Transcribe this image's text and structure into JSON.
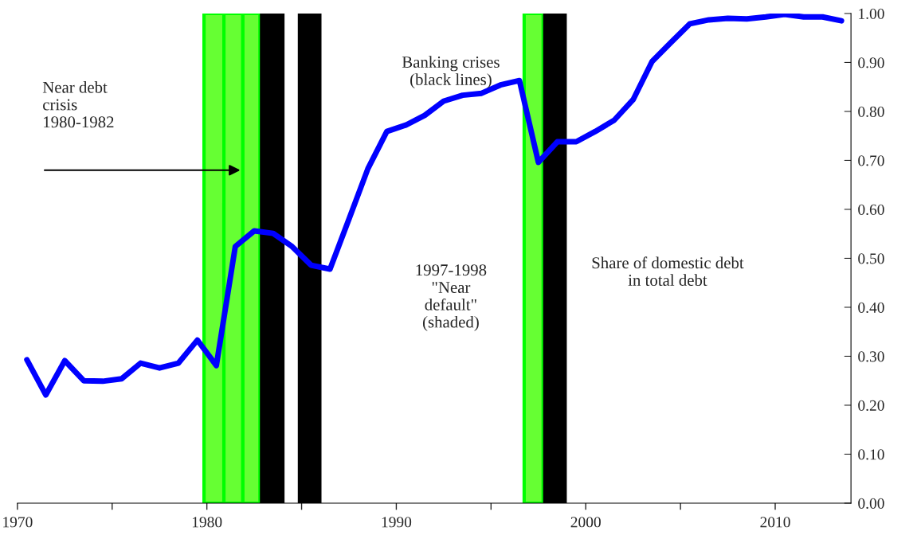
{
  "chart_data": {
    "type": "line",
    "x": [
      1970.5,
      1971.5,
      1972.5,
      1973.5,
      1974.5,
      1975.5,
      1976.5,
      1977.5,
      1978.5,
      1979.5,
      1980.5,
      1981.5,
      1982.5,
      1983.5,
      1984.5,
      1985.5,
      1986.5,
      1987.5,
      1988.5,
      1989.5,
      1990.5,
      1991.5,
      1992.5,
      1993.5,
      1994.5,
      1995.5,
      1996.5,
      1997.5,
      1998.5,
      1999.5,
      2000.5,
      2001.5,
      2002.5,
      2003.5,
      2004.5,
      2005.5,
      2006.5,
      2007.5,
      2008.5,
      2009.5,
      2010.5,
      2011.5,
      2012.5,
      2013.5
    ],
    "series": [
      {
        "color": "#0000ff",
        "values": [
          0.293,
          0.221,
          0.291,
          0.25,
          0.249,
          0.254,
          0.286,
          0.276,
          0.286,
          0.333,
          0.281,
          0.524,
          0.556,
          0.551,
          0.524,
          0.486,
          0.478,
          0.58,
          0.683,
          0.759,
          0.772,
          0.792,
          0.821,
          0.833,
          0.837,
          0.854,
          0.863,
          0.696,
          0.738,
          0.738,
          0.759,
          0.782,
          0.824,
          0.902,
          0.941,
          0.979,
          0.987,
          0.99,
          0.989,
          0.993,
          0.998,
          0.993,
          0.993,
          0.985
        ]
      }
    ],
    "xlim": [
      1970,
      2014
    ],
    "xticks": [
      1970,
      {
        "value": 1975,
        "label": null
      },
      1980,
      {
        "value": 1985,
        "label": null
      },
      1990,
      {
        "value": 1995,
        "label": null
      },
      2000,
      {
        "value": 2005,
        "label": null
      },
      2010
    ],
    "ylim": [
      0,
      1
    ],
    "yticks": [
      {
        "value": 0,
        "label": "0.00"
      },
      {
        "value": 0.1,
        "label": "0.10"
      },
      {
        "value": 0.2,
        "label": "0.20"
      },
      {
        "value": 0.3,
        "label": "0.30"
      },
      {
        "value": 0.4,
        "label": "0.40"
      },
      {
        "value": 0.5,
        "label": "0.50"
      },
      {
        "value": 0.6,
        "label": "0.60"
      },
      {
        "value": 0.7,
        "label": "0.70"
      },
      {
        "value": 0.8,
        "label": "0.80"
      },
      {
        "value": 0.9,
        "label": "0.90"
      },
      {
        "value": 1.0,
        "label": "1.00"
      }
    ],
    "bands": [
      {
        "axis": "x",
        "from": 1979.85,
        "to": 1980.9,
        "color": "#66ff33"
      },
      {
        "axis": "x",
        "from": 1980.9,
        "to": 1981.9,
        "color": "#66ff33"
      },
      {
        "axis": "x",
        "from": 1981.9,
        "to": 1982.8,
        "color": "#66ff33"
      },
      {
        "axis": "x",
        "from": 1982.8,
        "to": 1984.1,
        "color": "#000000"
      },
      {
        "axis": "x",
        "from": 1984.8,
        "to": 1986.05,
        "color": "#000000"
      },
      {
        "axis": "x",
        "from": 1996.75,
        "to": 1997.75,
        "color": "#66ff33"
      },
      {
        "axis": "x",
        "from": 1997.75,
        "to": 1999.0,
        "color": "#000000"
      }
    ],
    "annotations": [
      "Near debt\ncrisis\n1980-1982",
      "Banking crises\n(black lines)",
      "1997-1998\n\"Near\ndefault\"\n(shaded)",
      "Share of domestic debt\nin total debt"
    ],
    "grid": false,
    "legend": false,
    "marker": "none",
    "line_style": "solid"
  }
}
